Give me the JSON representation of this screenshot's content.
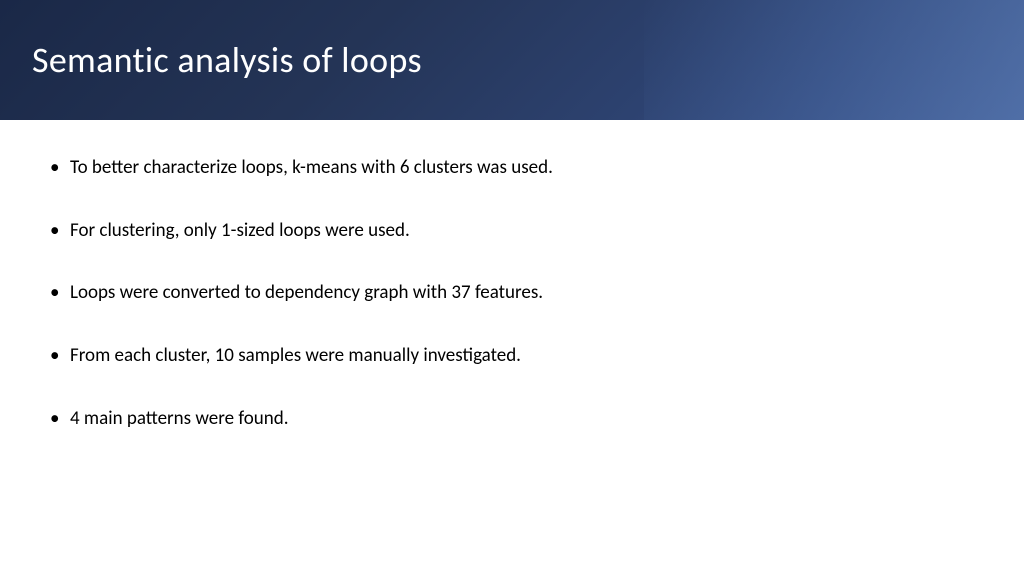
{
  "slide": {
    "title": "Semantic analysis of loops",
    "bullets": [
      "To better characterize loops, k-means with 6 clusters was used.",
      "For clustering, only 1-sized loops were used.",
      "Loops were converted to dependency graph with 37 features.",
      "From each cluster, 10 samples were manually investigated.",
      "4 main patterns were found."
    ],
    "colors": {
      "header_gradient_start": "#1a2847",
      "header_gradient_end": "#3a5490",
      "title_color": "#ffffff",
      "body_text_color": "#000000",
      "background": "#ffffff"
    },
    "typography": {
      "title_fontsize": 36,
      "body_fontsize": 19,
      "font_family": "Calibri"
    }
  }
}
